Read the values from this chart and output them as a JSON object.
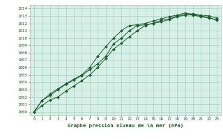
{
  "xlabel": "Graphe pression niveau de la mer (hPa)",
  "ylim": [
    999.5,
    1014.5
  ],
  "xlim": [
    -0.5,
    23.5
  ],
  "yticks": [
    1000,
    1001,
    1002,
    1003,
    1004,
    1005,
    1006,
    1007,
    1008,
    1009,
    1010,
    1011,
    1012,
    1013,
    1014
  ],
  "xticks": [
    0,
    1,
    2,
    3,
    4,
    5,
    6,
    7,
    8,
    9,
    10,
    11,
    12,
    13,
    14,
    15,
    16,
    17,
    18,
    19,
    20,
    21,
    22,
    23
  ],
  "bg_color": "#d6f0e8",
  "grid_color": "#a0c8b8",
  "line_color": "#1a5c2a",
  "outer_bg": "#ffffff",
  "series1": [
    1000.0,
    1000.8,
    1001.6,
    1002.0,
    1002.8,
    1003.5,
    1004.2,
    1005.0,
    1006.0,
    1007.2,
    1008.5,
    1009.3,
    1010.2,
    1011.0,
    1011.7,
    1012.0,
    1012.4,
    1012.6,
    1013.0,
    1013.2,
    1013.1,
    1012.9,
    1012.7,
    1012.5
  ],
  "series2": [
    1000.0,
    1001.5,
    1002.2,
    1003.0,
    1003.7,
    1004.3,
    1004.9,
    1005.7,
    1006.5,
    1007.5,
    1009.2,
    1010.0,
    1011.0,
    1011.7,
    1011.8,
    1012.0,
    1012.2,
    1012.5,
    1012.9,
    1013.1,
    1013.3,
    1013.1,
    1013.0,
    1012.7
  ],
  "series3": [
    1000.0,
    1001.5,
    1002.4,
    1003.1,
    1003.8,
    1004.4,
    1005.0,
    1006.0,
    1007.5,
    1008.8,
    1010.0,
    1011.0,
    1011.7,
    1011.8,
    1012.0,
    1012.3,
    1012.6,
    1012.9,
    1013.1,
    1013.4,
    1013.2,
    1013.0,
    1012.8,
    1012.4
  ]
}
